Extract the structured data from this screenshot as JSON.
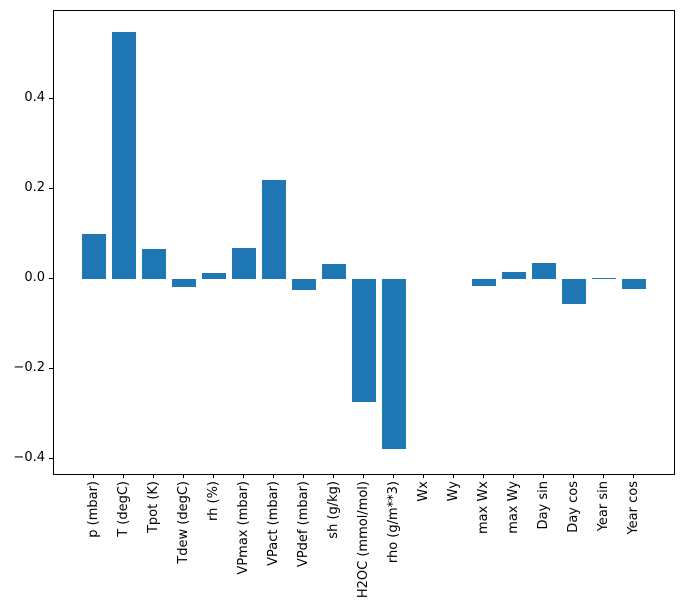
{
  "figure": {
    "background": "#ffffff",
    "spine_color": "#000000",
    "text_color": "#000000"
  },
  "chart_data": {
    "type": "bar",
    "title": "",
    "xlabel": "",
    "ylabel": "",
    "categories": [
      "p (mbar)",
      "T (degC)",
      "Tpot (K)",
      "Tdew (degC)",
      "rh (%)",
      "VPmax (mbar)",
      "VPact (mbar)",
      "VPdef (mbar)",
      "sh (g/kg)",
      "H2OC (mmol/mol)",
      "rho (g/m**3)",
      "Wx",
      "Wy",
      "max Wx",
      "max Wy",
      "Day sin",
      "Day cos",
      "Year sin",
      "Year cos"
    ],
    "values": [
      0.1,
      0.55,
      0.066,
      -0.017,
      0.013,
      0.069,
      0.221,
      -0.024,
      0.033,
      -0.274,
      -0.378,
      0.0,
      0.0,
      -0.016,
      0.017,
      0.036,
      -0.056,
      0.003,
      -0.021
    ],
    "bar_color": "#1f77b4",
    "ylim": [
      -0.433,
      0.596
    ],
    "yticks": [
      0.4,
      0.2,
      0.0,
      -0.2,
      -0.4
    ],
    "ytick_labels": [
      "0.4",
      "0.2",
      "0.0",
      "−0.2",
      "−0.4"
    ],
    "grid": false,
    "legend": "none"
  }
}
